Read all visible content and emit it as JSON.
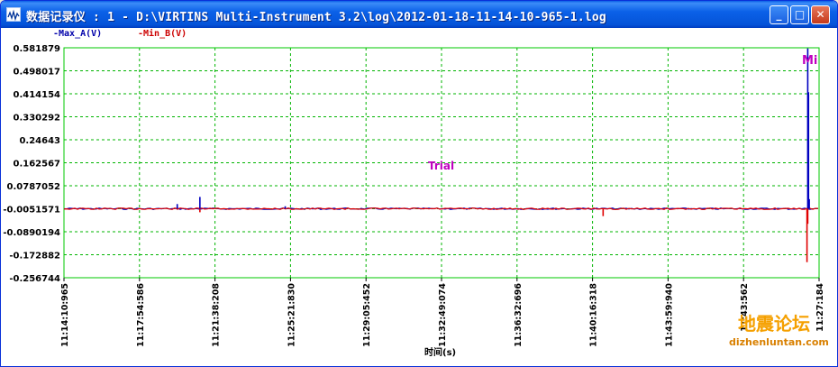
{
  "window": {
    "title": "数据记录仪 : 1 - D:\\VIRTINS Multi-Instrument 3.2\\log\\2012-01-18-11-14-10-965-1.log",
    "buttons": {
      "minimize": "_",
      "maximize": "□",
      "close": "✕"
    }
  },
  "legend": {
    "series_a": "-Max_A(V)",
    "series_b": "-Min_B(V)"
  },
  "watermark": "Trial",
  "corner_mark": "Mi",
  "site_logo": {
    "text": "地震论坛",
    "url_text": "dizhenluntan.com"
  },
  "colors": {
    "plot_border": "#00c800",
    "grid": "#00b400",
    "series_a": "#0000c0",
    "series_b": "#e00000",
    "watermark": "#c000c0"
  },
  "chart_data": {
    "type": "line",
    "xlabel": "时间(s)",
    "ylabel": "",
    "grid": true,
    "ylim": [
      -0.256744,
      0.581879
    ],
    "y_ticks": [
      "0.581879",
      "0.498017",
      "0.414154",
      "0.330292",
      "0.24643",
      "0.162567",
      "0.0787052",
      "-0.0051571",
      "-0.0890194",
      "-0.172882",
      "-0.256744"
    ],
    "x_ticks": [
      "11:14:10:965",
      "11:17:54:586",
      "11:21:38:208",
      "11:25:21:830",
      "11:29:05:452",
      "11:32:49:074",
      "11:36:32:696",
      "11:40:16:318",
      "11:43:59:940",
      "11:43:562",
      "11:27:184"
    ],
    "baseline": -0.0051571,
    "series": [
      {
        "name": "-Max_A(V)",
        "events": [
          [
            0.15,
            0.012
          ],
          [
            0.18,
            0.038
          ],
          [
            0.293,
            0.004
          ],
          [
            0.985,
            0.58
          ],
          [
            0.986,
            0.42
          ],
          [
            0.987,
            0.03
          ]
        ]
      },
      {
        "name": "-Min_B(V)",
        "events": [
          [
            0.18,
            -0.018
          ],
          [
            0.714,
            -0.032
          ],
          [
            0.984,
            -0.2
          ],
          [
            0.985,
            -0.06
          ]
        ]
      }
    ]
  }
}
